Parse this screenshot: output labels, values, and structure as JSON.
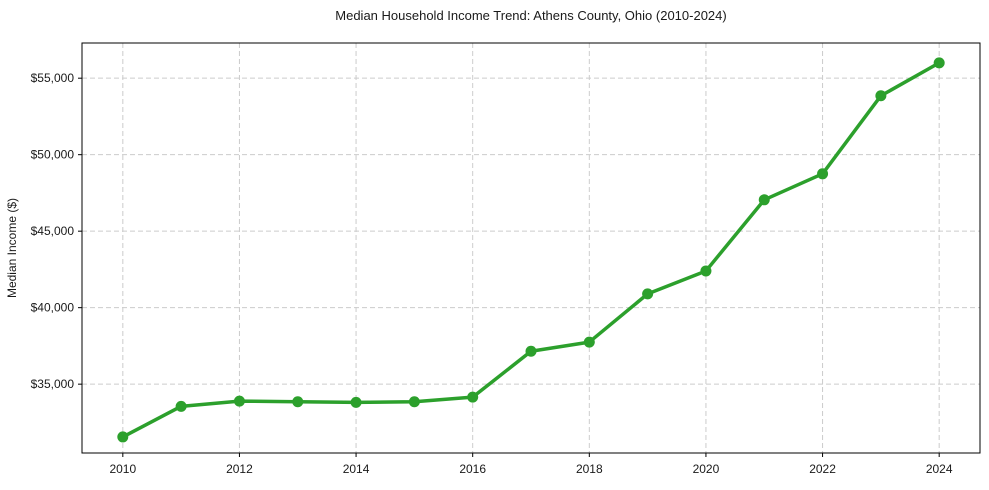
{
  "chart_data": {
    "type": "line",
    "title": "Median Household Income Trend: Athens County, Ohio (2010-2024)",
    "xlabel": "",
    "ylabel": "Median Income ($)",
    "x": [
      2010,
      2011,
      2012,
      2013,
      2014,
      2015,
      2016,
      2017,
      2018,
      2019,
      2020,
      2021,
      2022,
      2023,
      2024
    ],
    "values": [
      31550,
      33550,
      33890,
      33850,
      33810,
      33850,
      34150,
      37150,
      37750,
      40900,
      42400,
      47050,
      48750,
      53850,
      56000
    ],
    "x_ticks": [
      2010,
      2012,
      2014,
      2016,
      2018,
      2020,
      2022,
      2024
    ],
    "y_ticks": [
      35000,
      40000,
      45000,
      50000,
      55000
    ],
    "y_tick_labels": [
      "$35,000",
      "$40,000",
      "$45,000",
      "$50,000",
      "$55,000"
    ],
    "xlim": [
      2009.3,
      2024.7
    ],
    "ylim": [
      30500,
      57300
    ],
    "grid": true,
    "grid_style": "dashed",
    "legend": false,
    "colors": {
      "line": "#2ca02c",
      "marker": "#2ca02c",
      "grid": "#cccccc",
      "axis_border": "#000000",
      "text": "#1a1a1a"
    }
  }
}
